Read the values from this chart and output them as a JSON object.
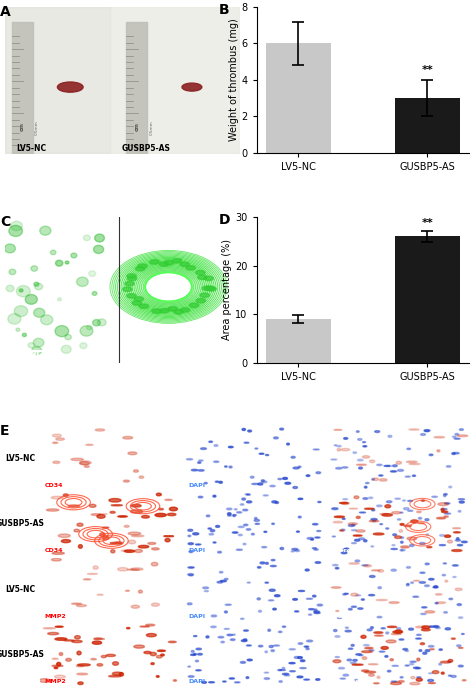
{
  "panel_B": {
    "categories": [
      "LV5-NC",
      "GUSBP5-AS"
    ],
    "values": [
      6.0,
      3.0
    ],
    "errors": [
      1.2,
      1.0
    ],
    "colors": [
      "#c8c8c8",
      "#1a1a1a"
    ],
    "ylabel": "Weight of thrombus (mg)",
    "ylim": [
      0,
      8
    ],
    "yticks": [
      0,
      2,
      4,
      6,
      8
    ],
    "label": "B",
    "sig_label": "**"
  },
  "panel_D": {
    "categories": [
      "LV5-NC",
      "GUSBP5-AS"
    ],
    "values": [
      9.0,
      26.0
    ],
    "errors": [
      0.8,
      1.2
    ],
    "colors": [
      "#c8c8c8",
      "#1a1a1a"
    ],
    "ylabel": "Area percentage (%)",
    "ylim": [
      0,
      30
    ],
    "yticks": [
      0,
      10,
      20,
      30
    ],
    "label": "D",
    "sig_label": "**"
  },
  "panel_labels": {
    "A": "A",
    "C": "C",
    "E": "E"
  },
  "background_color": "#ffffff",
  "label_LV5_NC": "LV5-NC",
  "label_GUSBP5_AS": "GUSBP5-AS"
}
